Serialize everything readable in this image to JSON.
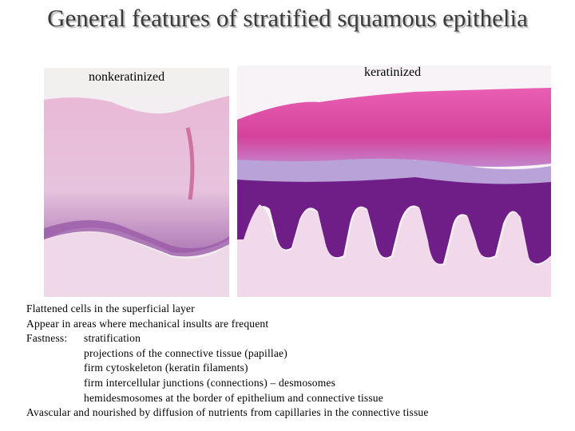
{
  "title": "General features of stratified squamous epithelia",
  "images": {
    "left_label": "nonkeratinized",
    "right_label": "keratinized"
  },
  "body": {
    "lines": [
      "Flattened cells in the superficial layer",
      "Appear in areas where mechanical insults are frequent"
    ],
    "fastness": {
      "label": "Fastness:",
      "items": [
        "stratification",
        "projections of the connective tissue (papillae)",
        "firm cytoskeleton (keratin filaments)",
        "firm intercellular junctions (connections) – desmosomes",
        "hemidesmosomes at the border of epithelium and connective tissue"
      ]
    },
    "last": "Avascular and nourished by diffusion of nutrients from capillaries in the connective tissue"
  }
}
